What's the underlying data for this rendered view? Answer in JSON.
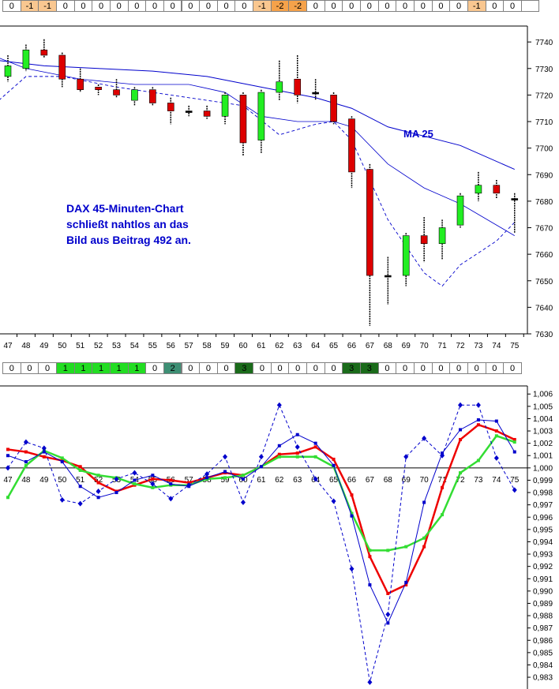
{
  "top_row": [
    "0",
    "-1",
    "-1",
    "0",
    "0",
    "0",
    "0",
    "0",
    "0",
    "0",
    "0",
    "0",
    "0",
    "0",
    "-1",
    "-2",
    "-2",
    "0",
    "0",
    "0",
    "0",
    "0",
    "0",
    "0",
    "0",
    "0",
    "-1",
    "0",
    "0",
    ""
  ],
  "mid_row": [
    "0",
    "0",
    "0",
    "1",
    "1",
    "1",
    "1",
    "1",
    "0",
    "2",
    "0",
    "0",
    "0",
    "3",
    "0",
    "0",
    "0",
    "0",
    "0",
    "3",
    "3",
    "0",
    "0",
    "0",
    "0",
    "0",
    "0",
    "0",
    "0"
  ],
  "colors": {
    "neg_cell": "#f9c790",
    "neg2_cell": "#f5a24a",
    "green_cell": "#22dd22",
    "teal_cell": "#3d8f74",
    "dark_cell": "#1a6b1a",
    "up": "#22ee22",
    "down": "#dd0000",
    "blue": "#0000cc",
    "red_line": "#ee0000",
    "green_line": "#33dd33"
  },
  "annotation": [
    "DAX 45-Minuten-Chart",
    "schließt nahtlos an das",
    "Bild aus Beitrag 492 an."
  ],
  "ma_label": "MA 25",
  "chart_data": [
    {
      "type": "candlestick",
      "x": [
        47,
        48,
        49,
        50,
        51,
        52,
        53,
        54,
        55,
        56,
        57,
        58,
        59,
        60,
        61,
        62,
        63,
        64,
        65,
        66,
        67,
        68,
        69,
        70,
        71,
        72,
        73,
        74,
        75
      ],
      "candles": [
        {
          "x": 47,
          "o": 7727,
          "c": 7731,
          "h": 7735,
          "l": 7725
        },
        {
          "x": 48,
          "o": 7730,
          "c": 7737,
          "h": 7739,
          "l": 7729
        },
        {
          "x": 49,
          "o": 7737,
          "c": 7735,
          "h": 7741,
          "l": 7734
        },
        {
          "x": 50,
          "o": 7735,
          "c": 7726,
          "h": 7736,
          "l": 7723
        },
        {
          "x": 51,
          "o": 7726,
          "c": 7722,
          "h": 7730,
          "l": 7721
        },
        {
          "x": 52,
          "o": 7723,
          "c": 7722,
          "h": 7724,
          "l": 7720
        },
        {
          "x": 53,
          "o": 7722,
          "c": 7720,
          "h": 7726,
          "l": 7719
        },
        {
          "x": 54,
          "o": 7718,
          "c": 7722,
          "h": 7723,
          "l": 7716
        },
        {
          "x": 55,
          "o": 7722,
          "c": 7717,
          "h": 7723,
          "l": 7716
        },
        {
          "x": 56,
          "o": 7717,
          "c": 7714,
          "h": 7719,
          "l": 7709
        },
        {
          "x": 57,
          "o": 7714,
          "c": 7714,
          "h": 7716,
          "l": 7712
        },
        {
          "x": 58,
          "o": 7714,
          "c": 7712,
          "h": 7716,
          "l": 7711
        },
        {
          "x": 59,
          "o": 7712,
          "c": 7720,
          "h": 7721,
          "l": 7709
        },
        {
          "x": 60,
          "o": 7720,
          "c": 7702,
          "h": 7721,
          "l": 7697
        },
        {
          "x": 61,
          "o": 7703,
          "c": 7721,
          "h": 7722,
          "l": 7698
        },
        {
          "x": 62,
          "o": 7721,
          "c": 7725,
          "h": 7733,
          "l": 7718
        },
        {
          "x": 63,
          "o": 7726,
          "c": 7720,
          "h": 7735,
          "l": 7717
        },
        {
          "x": 64,
          "o": 7721,
          "c": 7721,
          "h": 7726,
          "l": 7718
        },
        {
          "x": 65,
          "o": 7720,
          "c": 7710,
          "h": 7721,
          "l": 7709
        },
        {
          "x": 66,
          "o": 7711,
          "c": 7691,
          "h": 7712,
          "l": 7685
        },
        {
          "x": 67,
          "o": 7692,
          "c": 7652,
          "h": 7694,
          "l": 7633
        },
        {
          "x": 68,
          "o": 7652,
          "c": 7652,
          "h": 7659,
          "l": 7641
        },
        {
          "x": 69,
          "o": 7652,
          "c": 7667,
          "h": 7668,
          "l": 7648
        },
        {
          "x": 70,
          "o": 7667,
          "c": 7664,
          "h": 7674,
          "l": 7657
        },
        {
          "x": 71,
          "o": 7664,
          "c": 7670,
          "h": 7673,
          "l": 7658
        },
        {
          "x": 72,
          "o": 7671,
          "c": 7682,
          "h": 7683,
          "l": 7670
        },
        {
          "x": 73,
          "o": 7683,
          "c": 7686,
          "h": 7691,
          "l": 7680
        },
        {
          "x": 74,
          "o": 7686,
          "c": 7683,
          "h": 7688,
          "l": 7681
        },
        {
          "x": 75,
          "o": 7681,
          "c": 7681,
          "h": 7683,
          "l": 7668
        }
      ],
      "ma25": [
        [
          46.5,
          7733
        ],
        [
          49,
          7731
        ],
        [
          52,
          7730
        ],
        [
          55,
          7729
        ],
        [
          58,
          7727
        ],
        [
          61,
          7723
        ],
        [
          64,
          7719
        ],
        [
          66,
          7715
        ],
        [
          68,
          7708
        ],
        [
          72,
          7701
        ],
        [
          75,
          7692
        ]
      ],
      "ma_thin": [
        [
          46.5,
          7734
        ],
        [
          48,
          7730
        ],
        [
          51,
          7726
        ],
        [
          54,
          7724
        ],
        [
          57,
          7724
        ],
        [
          59,
          7721
        ],
        [
          61,
          7712
        ],
        [
          63,
          7710
        ],
        [
          65,
          7710
        ],
        [
          66,
          7708
        ],
        [
          68,
          7694
        ],
        [
          70,
          7685
        ],
        [
          72,
          7679
        ],
        [
          75,
          7667
        ]
      ],
      "ma_dash": [
        [
          46.5,
          7718
        ],
        [
          48,
          7727
        ],
        [
          50,
          7727
        ],
        [
          53,
          7723
        ],
        [
          56,
          7720
        ],
        [
          58,
          7718
        ],
        [
          60,
          7716
        ],
        [
          62,
          7705
        ],
        [
          64,
          7709
        ],
        [
          65,
          7710
        ],
        [
          66,
          7703
        ],
        [
          67,
          7688
        ],
        [
          68,
          7673
        ],
        [
          70,
          7653
        ],
        [
          71,
          7648
        ],
        [
          72,
          7656
        ],
        [
          74,
          7665
        ],
        [
          75,
          7672
        ]
      ],
      "yticks": [
        7630,
        7640,
        7650,
        7660,
        7670,
        7680,
        7690,
        7700,
        7710,
        7720,
        7730,
        7740
      ],
      "ylim": [
        7630,
        7746
      ]
    },
    {
      "type": "line",
      "x": [
        47,
        48,
        49,
        50,
        51,
        52,
        53,
        54,
        55,
        56,
        57,
        58,
        59,
        60,
        61,
        62,
        63,
        64,
        65,
        66,
        67,
        68,
        69,
        70,
        71,
        72,
        73,
        74,
        75
      ],
      "series": [
        {
          "style": "red",
          "values": [
            1.0015,
            1.0013,
            1.0009,
            1.0006,
            1.0001,
            0.9988,
            0.9981,
            0.9986,
            0.9991,
            0.999,
            0.9988,
            0.9992,
            0.9996,
            0.9994,
            1.0001,
            1.0011,
            1.0012,
            1.0017,
            1.0007,
            0.9978,
            0.9928,
            0.9898,
            0.9905,
            0.9936,
            0.9984,
            1.0023,
            1.0035,
            1.003,
            1.0023
          ]
        },
        {
          "style": "green",
          "values": [
            0.9976,
            1.0002,
            1.0014,
            1.0008,
            0.9998,
            0.9994,
            0.9992,
            0.9987,
            0.9984,
            0.9986,
            0.9986,
            0.9991,
            0.9992,
            0.9994,
            1.0001,
            1.0009,
            1.0009,
            1.0009,
            1.0001,
            0.9963,
            0.9933,
            0.9933,
            0.9936,
            0.9943,
            0.9962,
            0.9996,
            1.0006,
            1.0026,
            1.0021
          ]
        },
        {
          "style": "blue_solid",
          "values": [
            1.001,
            1.0005,
            1.0013,
            1.0005,
            0.9985,
            0.9976,
            0.998,
            0.999,
            0.9994,
            0.9987,
            0.9985,
            0.9992,
            0.9997,
            0.9991,
            1.0001,
            1.0018,
            1.0027,
            1.002,
            1.0002,
            0.9961,
            0.9905,
            0.9874,
            0.9907,
            0.9972,
            1.0012,
            1.0031,
            1.0039,
            1.0038,
            1.0013
          ]
        },
        {
          "style": "blue_dashed",
          "values": [
            1.0,
            1.0021,
            1.0016,
            0.9974,
            0.9971,
            0.9981,
            0.9991,
            0.9996,
            0.9987,
            0.9975,
            0.9986,
            0.9995,
            1.0009,
            0.9972,
            1.0009,
            1.0051,
            1.0017,
            0.9991,
            0.9973,
            0.9918,
            0.9826,
            0.9881,
            1.0009,
            1.0024,
            1.001,
            1.0051,
            1.0051,
            1.0008,
            0.9982
          ]
        }
      ],
      "yticks": [
        "0,983",
        "0,984",
        "0,985",
        "0,986",
        "0,987",
        "0,988",
        "0,989",
        "0,990",
        "0,991",
        "0,992",
        "0,993",
        "0,994",
        "0,995",
        "0,996",
        "0,997",
        "0,998",
        "0,999",
        "1,000",
        "1,001",
        "1,002",
        "1,003",
        "1,004",
        "1,005",
        "1,006"
      ],
      "ylim": [
        0.9823,
        1.0064
      ]
    }
  ]
}
